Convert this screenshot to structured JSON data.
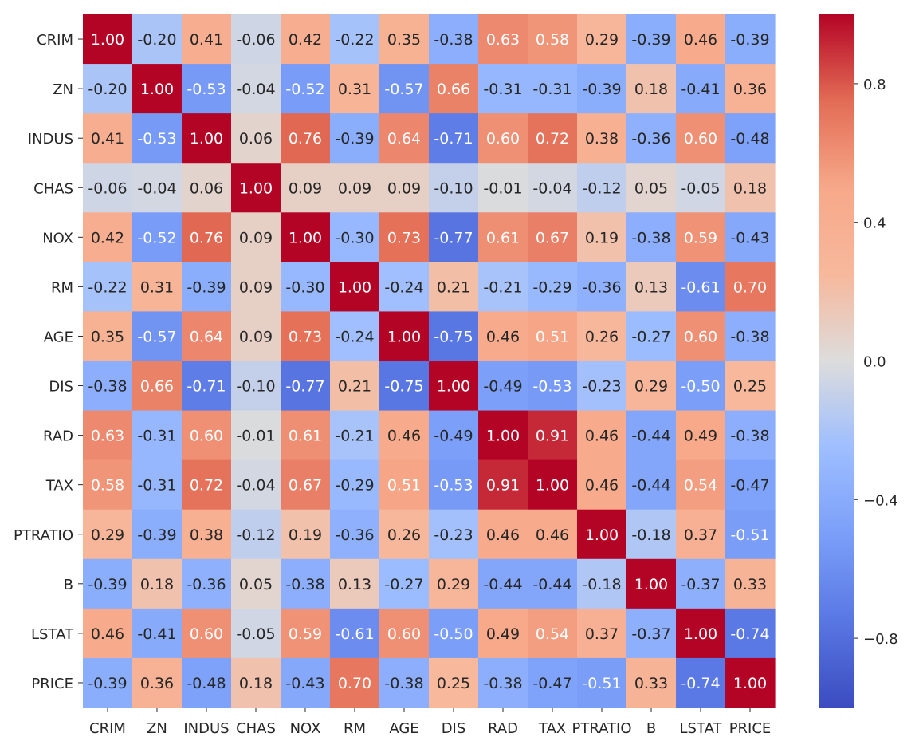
{
  "chart_data": {
    "type": "heatmap",
    "title": "",
    "xlabel": "",
    "ylabel": "",
    "colormap": "coolwarm",
    "vmin": -1.0,
    "vmax": 1.0,
    "value_format": "0.00",
    "labels": [
      "CRIM",
      "ZN",
      "INDUS",
      "CHAS",
      "NOX",
      "RM",
      "AGE",
      "DIS",
      "RAD",
      "TAX",
      "PTRATIO",
      "B",
      "LSTAT",
      "PRICE"
    ],
    "matrix": [
      [
        1.0,
        -0.2,
        0.41,
        -0.06,
        0.42,
        -0.22,
        0.35,
        -0.38,
        0.63,
        0.58,
        0.29,
        -0.39,
        0.46,
        -0.39
      ],
      [
        -0.2,
        1.0,
        -0.53,
        -0.04,
        -0.52,
        0.31,
        -0.57,
        0.66,
        -0.31,
        -0.31,
        -0.39,
        0.18,
        -0.41,
        0.36
      ],
      [
        0.41,
        -0.53,
        1.0,
        0.06,
        0.76,
        -0.39,
        0.64,
        -0.71,
        0.6,
        0.72,
        0.38,
        -0.36,
        0.6,
        -0.48
      ],
      [
        -0.06,
        -0.04,
        0.06,
        1.0,
        0.09,
        0.09,
        0.09,
        -0.1,
        -0.01,
        -0.04,
        -0.12,
        0.05,
        -0.05,
        0.18
      ],
      [
        0.42,
        -0.52,
        0.76,
        0.09,
        1.0,
        -0.3,
        0.73,
        -0.77,
        0.61,
        0.67,
        0.19,
        -0.38,
        0.59,
        -0.43
      ],
      [
        -0.22,
        0.31,
        -0.39,
        0.09,
        -0.3,
        1.0,
        -0.24,
        0.21,
        -0.21,
        -0.29,
        -0.36,
        0.13,
        -0.61,
        0.7
      ],
      [
        0.35,
        -0.57,
        0.64,
        0.09,
        0.73,
        -0.24,
        1.0,
        -0.75,
        0.46,
        0.51,
        0.26,
        -0.27,
        0.6,
        -0.38
      ],
      [
        -0.38,
        0.66,
        -0.71,
        -0.1,
        -0.77,
        0.21,
        -0.75,
        1.0,
        -0.49,
        -0.53,
        -0.23,
        0.29,
        -0.5,
        0.25
      ],
      [
        0.63,
        -0.31,
        0.6,
        -0.01,
        0.61,
        -0.21,
        0.46,
        -0.49,
        1.0,
        0.91,
        0.46,
        -0.44,
        0.49,
        -0.38
      ],
      [
        0.58,
        -0.31,
        0.72,
        -0.04,
        0.67,
        -0.29,
        0.51,
        -0.53,
        0.91,
        1.0,
        0.46,
        -0.44,
        0.54,
        -0.47
      ],
      [
        0.29,
        -0.39,
        0.38,
        -0.12,
        0.19,
        -0.36,
        0.26,
        -0.23,
        0.46,
        0.46,
        1.0,
        -0.18,
        0.37,
        -0.51
      ],
      [
        -0.39,
        0.18,
        -0.36,
        0.05,
        -0.38,
        0.13,
        -0.27,
        0.29,
        -0.44,
        -0.44,
        -0.18,
        1.0,
        -0.37,
        0.33
      ],
      [
        0.46,
        -0.41,
        0.6,
        -0.05,
        0.59,
        -0.61,
        0.6,
        -0.5,
        0.49,
        0.54,
        0.37,
        -0.37,
        1.0,
        -0.74
      ],
      [
        -0.39,
        0.36,
        -0.48,
        0.18,
        -0.43,
        0.7,
        -0.38,
        0.25,
        -0.38,
        -0.47,
        -0.51,
        0.33,
        -0.74,
        1.0
      ]
    ],
    "colorbar": {
      "ticks": [
        0.8,
        0.4,
        0.0,
        -0.4,
        -0.8
      ],
      "tick_labels": [
        "0.8",
        "0.4",
        "0.0",
        "−0.4",
        "−0.8"
      ]
    }
  }
}
